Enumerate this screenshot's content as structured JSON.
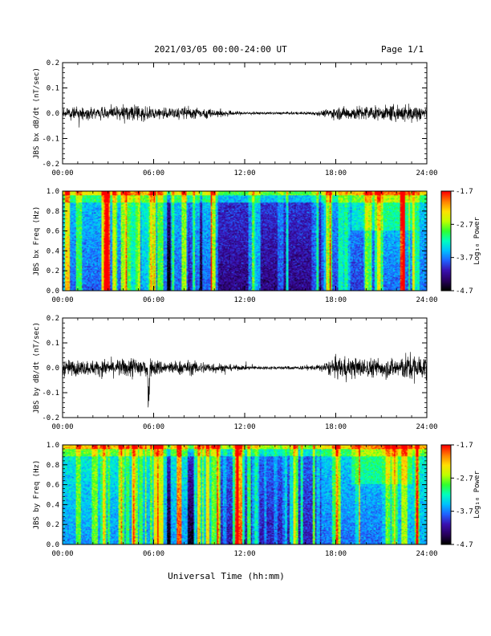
{
  "header": {
    "title": "2021/03/05  00:00-24:00 UT",
    "page": "Page 1/1"
  },
  "footer": {
    "xlabel": "Universal Time (hh:mm)"
  },
  "colorscale": [
    "#000000",
    "#2a0060",
    "#3a10b0",
    "#2060ff",
    "#00c0ff",
    "#00ffc0",
    "#30ff30",
    "#c0ff00",
    "#ffe000",
    "#ff8000",
    "#ff0000"
  ],
  "chart_data": [
    {
      "type": "line",
      "name": "bx-waveform",
      "ylabel": "JBS bx dB/dt (nT/sec)",
      "xlim": [
        "00:00",
        "24:00"
      ],
      "ylim": [
        -0.2,
        0.2
      ],
      "x_ticks": [
        "00:00",
        "06:00",
        "12:00",
        "18:00",
        "24:00"
      ],
      "y_ticks": [
        "-0.2",
        "-0.1",
        "0.0",
        "0.1",
        "0.2"
      ],
      "envelope": {
        "hours": [
          0,
          1,
          2,
          3,
          4,
          5,
          6,
          7,
          8,
          9,
          10,
          11,
          12,
          13,
          14,
          15,
          16,
          17,
          18,
          19,
          20,
          21,
          22,
          23,
          24
        ],
        "amplitude": [
          0.022,
          0.025,
          0.025,
          0.03,
          0.035,
          0.04,
          0.03,
          0.025,
          0.03,
          0.025,
          0.02,
          0.012,
          0.008,
          0.006,
          0.006,
          0.006,
          0.007,
          0.012,
          0.028,
          0.032,
          0.035,
          0.03,
          0.04,
          0.045,
          0.035
        ]
      }
    },
    {
      "type": "heatmap",
      "name": "bx-spectrogram",
      "ylabel": "JBS bx Freq (Hz)",
      "xlim": [
        "00:00",
        "24:00"
      ],
      "ylim": [
        0.0,
        1.0
      ],
      "x_ticks": [
        "00:00",
        "06:00",
        "12:00",
        "18:00",
        "24:00"
      ],
      "y_ticks": [
        "0.0",
        "0.2",
        "0.4",
        "0.6",
        "0.8",
        "1.0"
      ],
      "colorbar": {
        "label": "Log₁₀ Power",
        "range": [
          -4.7,
          -1.7
        ],
        "ticks": [
          "-1.7",
          "-2.7",
          "-3.7",
          "-4.7"
        ]
      }
    },
    {
      "type": "line",
      "name": "by-waveform",
      "ylabel": "JBS by dB/dt (nT/sec)",
      "xlim": [
        "00:00",
        "24:00"
      ],
      "ylim": [
        -0.2,
        0.2
      ],
      "x_ticks": [
        "00:00",
        "06:00",
        "12:00",
        "18:00",
        "24:00"
      ],
      "y_ticks": [
        "-0.2",
        "-0.1",
        "0.0",
        "0.1",
        "0.2"
      ],
      "envelope": {
        "hours": [
          0,
          1,
          2,
          3,
          4,
          5,
          6,
          7,
          8,
          9,
          10,
          11,
          12,
          13,
          14,
          15,
          16,
          17,
          18,
          19,
          20,
          21,
          22,
          23,
          24
        ],
        "amplitude": [
          0.04,
          0.035,
          0.035,
          0.04,
          0.04,
          0.06,
          0.04,
          0.03,
          0.035,
          0.03,
          0.025,
          0.015,
          0.01,
          0.008,
          0.008,
          0.008,
          0.01,
          0.015,
          0.05,
          0.05,
          0.045,
          0.045,
          0.05,
          0.07,
          0.05
        ]
      }
    },
    {
      "type": "heatmap",
      "name": "by-spectrogram",
      "ylabel": "JBS by Freq (Hz)",
      "xlim": [
        "00:00",
        "24:00"
      ],
      "ylim": [
        0.0,
        1.0
      ],
      "x_ticks": [
        "00:00",
        "06:00",
        "12:00",
        "18:00",
        "24:00"
      ],
      "y_ticks": [
        "0.0",
        "0.2",
        "0.4",
        "0.6",
        "0.8",
        "1.0"
      ],
      "colorbar": {
        "label": "Log₁₀ Power",
        "range": [
          -4.7,
          -1.7
        ],
        "ticks": [
          "-1.7",
          "-2.7",
          "-3.7",
          "-4.7"
        ]
      }
    }
  ]
}
